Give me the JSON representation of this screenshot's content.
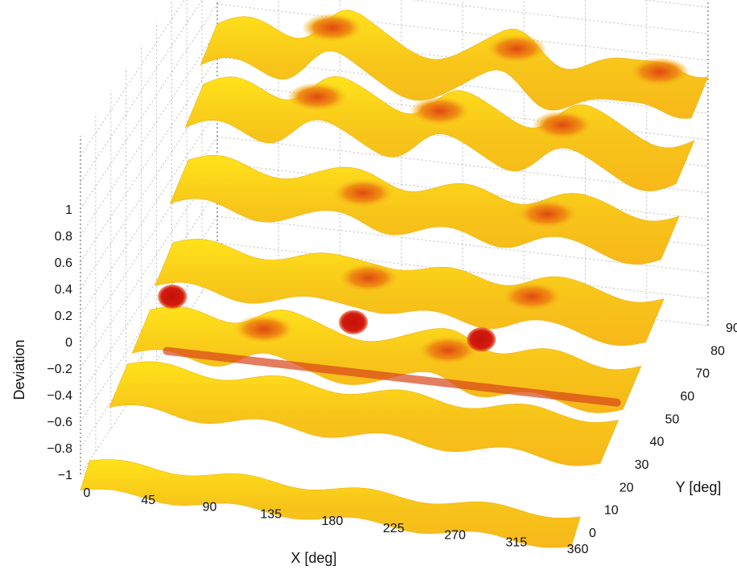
{
  "chart_data": {
    "type": "surface",
    "title": "",
    "xlabel": "X [deg]",
    "ylabel": "Y [deg]",
    "zlabel": "Deviation",
    "x_ticks": [
      0,
      45,
      90,
      135,
      180,
      225,
      270,
      315,
      360
    ],
    "y_ticks": [
      0,
      10,
      20,
      30,
      40,
      50,
      60,
      70,
      80,
      90
    ],
    "z_ticks": [
      -1,
      -0.8,
      -0.6,
      -0.4,
      -0.2,
      0,
      0.2,
      0.4,
      0.6,
      0.8,
      1
    ],
    "z_tick_labels": [
      "−1",
      "−0.8",
      "−0.6",
      "−0.4",
      "−0.2",
      "0",
      "0.2",
      "0.4",
      "0.6",
      "0.8",
      "1"
    ],
    "xlim": [
      0,
      360
    ],
    "ylim": [
      0,
      90
    ],
    "zlim": [
      -1,
      1
    ],
    "colormap": "autumn-reversed",
    "colors": {
      "low": "#d41a10",
      "mid": "#f07a10",
      "high": "#ffe21a",
      "accent": "#f4c51c"
    },
    "grid": true,
    "series": [
      {
        "y": 0,
        "z_base": -1.0,
        "ripple_amplitude": 0.03,
        "bumps": []
      },
      {
        "y": 25,
        "z_base": -0.7,
        "ripple_amplitude": 0.04,
        "bumps": []
      },
      {
        "y": 40,
        "z_base": -0.55,
        "ripple_amplitude": 0.05,
        "bumps": [
          {
            "x": 90,
            "z": -0.45
          },
          {
            "x": 225,
            "z": -0.45
          }
        ]
      },
      {
        "y": 55,
        "z_base": -0.3,
        "ripple_amplitude": 0.05,
        "bumps": [
          {
            "x": 150,
            "z": -0.25
          },
          {
            "x": 270,
            "z": -0.25
          }
        ]
      },
      {
        "y": 65,
        "z_base": 0.15,
        "ripple_amplitude": 0.06,
        "bumps": [
          {
            "x": 135,
            "z": 0.2
          },
          {
            "x": 270,
            "z": 0.2
          }
        ]
      },
      {
        "y": 75,
        "z_base": 0.55,
        "ripple_amplitude": 0.08,
        "bumps": [
          {
            "x": 90,
            "z": 0.7
          },
          {
            "x": 180,
            "z": 0.7
          },
          {
            "x": 270,
            "z": 0.7
          }
        ]
      },
      {
        "y": 85,
        "z_base": 0.85,
        "ripple_amplitude": 0.08,
        "bumps": [
          {
            "x": 90,
            "z": 1.05
          },
          {
            "x": 225,
            "z": 1.05
          },
          {
            "x": 330,
            "z": 1.0
          }
        ]
      }
    ]
  }
}
